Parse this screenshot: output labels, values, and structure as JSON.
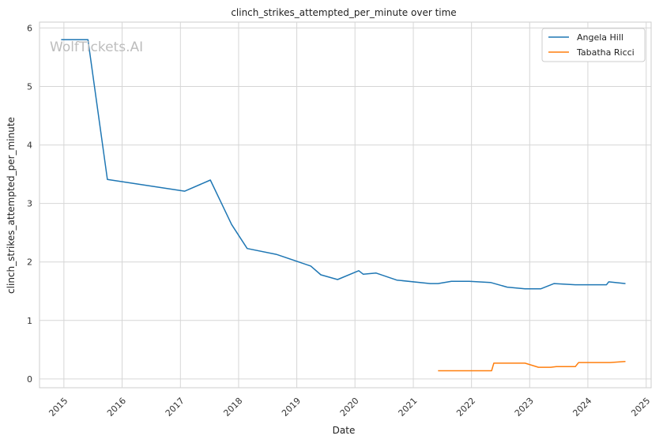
{
  "chart_data": {
    "type": "line",
    "title": "clinch_strikes_attempted_per_minute over time",
    "xlabel": "Date",
    "ylabel": "clinch_strikes_attempted_per_minute",
    "xlim": [
      "2014-08-01",
      "2025-02-01"
    ],
    "ylim": [
      -0.15,
      6.1
    ],
    "x_ticks": [
      "2015",
      "2016",
      "2017",
      "2018",
      "2019",
      "2020",
      "2021",
      "2022",
      "2023",
      "2024",
      "2025"
    ],
    "y_ticks": [
      "0",
      "1",
      "2",
      "3",
      "4",
      "5",
      "6"
    ],
    "grid": true,
    "legend_position": "top-right",
    "watermark": "WolfTickets.AI",
    "series": [
      {
        "name": "Angela Hill",
        "color": "#1f77b4",
        "points": [
          [
            "2014-12-15",
            5.8
          ],
          [
            "2015-06-01",
            5.8
          ],
          [
            "2015-10-01",
            3.41
          ],
          [
            "2017-01-28",
            3.21
          ],
          [
            "2017-07-08",
            3.4
          ],
          [
            "2017-11-18",
            2.64
          ],
          [
            "2018-02-24",
            2.23
          ],
          [
            "2018-08-25",
            2.13
          ],
          [
            "2019-03-30",
            1.93
          ],
          [
            "2019-06-01",
            1.78
          ],
          [
            "2019-09-14",
            1.7
          ],
          [
            "2020-01-25",
            1.85
          ],
          [
            "2020-02-22",
            1.79
          ],
          [
            "2020-05-13",
            1.81
          ],
          [
            "2020-09-19",
            1.69
          ],
          [
            "2021-04-17",
            1.63
          ],
          [
            "2021-06-05",
            1.63
          ],
          [
            "2021-08-28",
            1.67
          ],
          [
            "2021-12-18",
            1.67
          ],
          [
            "2022-04-30",
            1.65
          ],
          [
            "2022-08-13",
            1.57
          ],
          [
            "2022-12-03",
            1.54
          ],
          [
            "2023-03-11",
            1.54
          ],
          [
            "2023-06-03",
            1.63
          ],
          [
            "2023-10-14",
            1.61
          ],
          [
            "2024-04-27",
            1.61
          ],
          [
            "2024-05-11",
            1.66
          ],
          [
            "2024-08-24",
            1.63
          ]
        ]
      },
      {
        "name": "Tabatha Ricci",
        "color": "#ff7f0e",
        "points": [
          [
            "2021-06-05",
            0.14
          ],
          [
            "2022-05-07",
            0.14
          ],
          [
            "2022-05-21",
            0.27
          ],
          [
            "2022-12-03",
            0.27
          ],
          [
            "2023-02-25",
            0.2
          ],
          [
            "2023-05-13",
            0.2
          ],
          [
            "2023-06-17",
            0.21
          ],
          [
            "2023-10-14",
            0.21
          ],
          [
            "2023-11-04",
            0.28
          ],
          [
            "2024-05-18",
            0.28
          ],
          [
            "2024-08-24",
            0.3
          ]
        ]
      }
    ]
  }
}
